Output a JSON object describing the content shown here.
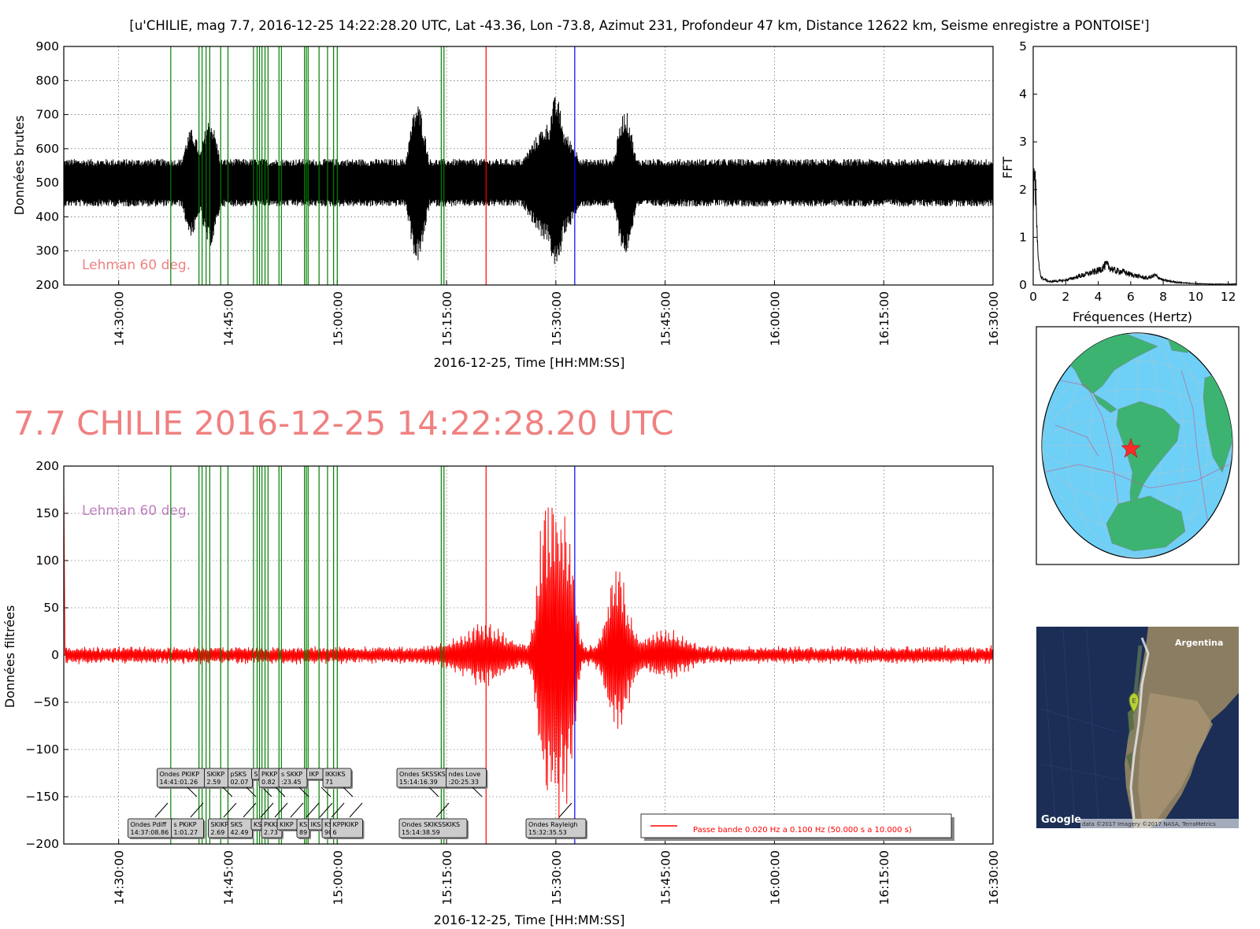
{
  "header": {
    "title": "[u'CHILIE, mag 7.7, 2016-12-25 14:22:28.20 UTC, Lat -43.36, Lon -73.8, Azimut 231, Profondeur 47 km, Distance 12622 km, Seisme enregistre a PONTOISE']",
    "headline": "7.7 CHILIE 2016-12-25 14:22:28.20 UTC"
  },
  "chart_data": [
    {
      "type": "line",
      "id": "raw",
      "ylabel": "Données brutes",
      "xlabel": "2016-12-25, Time [HH:MM:SS]",
      "xlim": [
        "14:22:28",
        "16:30:00"
      ],
      "ylim": [
        200,
        900
      ],
      "yticks": [
        "200",
        "300",
        "400",
        "500",
        "600",
        "700",
        "800",
        "900"
      ],
      "xticks": [
        "14:30:00",
        "14:45:00",
        "15:00:00",
        "15:15:00",
        "15:30:00",
        "15:45:00",
        "16:00:00",
        "16:15:00",
        "16:30:00"
      ],
      "annotation_text": "Lehman 60 deg.",
      "series_color": "#000000",
      "baseline": 500,
      "features": [
        {
          "time": "14:40:00",
          "min": 315,
          "max": 660
        },
        {
          "time": "14:42:30",
          "min": 280,
          "max": 715
        },
        {
          "time": "15:11:00",
          "min": 225,
          "max": 765
        },
        {
          "time": "15:30:00",
          "min": 255,
          "max": 800
        },
        {
          "time": "15:39:30",
          "min": 250,
          "max": 650
        }
      ]
    },
    {
      "type": "line",
      "id": "fft",
      "ylabel": "FFT",
      "xlabel": "Fréquences (Hertz)",
      "xlim": [
        0,
        12.5
      ],
      "ylim": [
        0,
        5
      ],
      "xticks": [
        "0",
        "2",
        "4",
        "6",
        "8",
        "10",
        "12"
      ],
      "yticks": [
        "0",
        "1",
        "2",
        "3",
        "4",
        "5"
      ],
      "series_color": "#000000",
      "points": [
        [
          0.02,
          1.4
        ],
        [
          0.05,
          2.8
        ],
        [
          0.1,
          2.4
        ],
        [
          0.2,
          1.4
        ],
        [
          0.3,
          0.5
        ],
        [
          0.5,
          0.15
        ],
        [
          1.0,
          0.07
        ],
        [
          2.0,
          0.1
        ],
        [
          3.0,
          0.2
        ],
        [
          4.0,
          0.3
        ],
        [
          4.5,
          0.42
        ],
        [
          5.0,
          0.3
        ],
        [
          5.5,
          0.28
        ],
        [
          6.0,
          0.22
        ],
        [
          7.0,
          0.14
        ],
        [
          7.5,
          0.2
        ],
        [
          8.0,
          0.1
        ],
        [
          9.0,
          0.05
        ],
        [
          10.0,
          0.03
        ],
        [
          11.0,
          0.02
        ],
        [
          12.5,
          0.02
        ]
      ]
    },
    {
      "type": "line",
      "id": "filtered",
      "ylabel": "Données filtrées",
      "xlabel": "2016-12-25, Time [HH:MM:SS]",
      "xlim": [
        "14:22:28",
        "16:30:00"
      ],
      "ylim": [
        -200,
        200
      ],
      "yticks": [
        "−200",
        "−150",
        "−100",
        "−50",
        "0",
        "50",
        "100",
        "150",
        "200"
      ],
      "xticks": [
        "14:30:00",
        "14:45:00",
        "15:00:00",
        "15:15:00",
        "15:30:00",
        "15:45:00",
        "16:00:00",
        "16:15:00",
        "16:30:00"
      ],
      "annotation_text": "Lehman 60 deg.",
      "series_color": "#ff0000",
      "legend": "Passe bande 0.020 Hz a 0.100 Hz (50.000 s a 10.000 s)",
      "features": [
        {
          "time": "15:30:00",
          "amplitude": 175
        },
        {
          "time": "15:38:30",
          "amplitude": 92
        }
      ]
    }
  ],
  "phase_lines": {
    "green_times": [
      "14:37:08.86",
      "14:41:01.26",
      "14:41:27",
      "14:42:00",
      "14:42:30",
      "14:44:00",
      "14:45:00",
      "14:48:30",
      "14:49:00",
      "14:49:20",
      "14:49:40",
      "14:50:05",
      "14:50:30",
      "14:52:00",
      "14:52:20",
      "14:55:30",
      "14:55:45",
      "14:56:00",
      "14:57:30",
      "14:58:40",
      "14:59:30",
      "15:00:00",
      "15:14:16.39",
      "15:14:38.59"
    ],
    "red_time": "15:20:25.33",
    "blue_time": "15:32:35.53"
  },
  "phase_labels": {
    "upper_row": [
      {
        "label": "Ondes PKIKP\n14:41:01.26"
      },
      {
        "label": "SKIKP\n2.59"
      },
      {
        "label": "pSKS\n02.07"
      },
      {
        "label": "S"
      },
      {
        "label": "PKKP\n0.82"
      },
      {
        "label": "s SKKP\n:23.45"
      },
      {
        "label": "IKP"
      },
      {
        "label": "IKKIKS\n71"
      },
      {
        "label": "Ondes SKSSKS\n15:14:16.39"
      },
      {
        "label": "ndes Love\n:20:25.33"
      }
    ],
    "lower_row": [
      {
        "label": "Ondes Pdiff\n14:37:08.86"
      },
      {
        "label": "s PKiKP\n1:01.27"
      },
      {
        "label": "SKIKP\n2.69"
      },
      {
        "label": "SKS\n42.49"
      },
      {
        "label": "KS"
      },
      {
        "label": "PKKP\n2.73"
      },
      {
        "label": "KIKP"
      },
      {
        "label": "KS\n89"
      },
      {
        "label": "IKS"
      },
      {
        "label": "KS\n90"
      },
      {
        "label": "KPPKIKP\n6"
      },
      {
        "label": "Ondes SKIKSSKIKS\n15:14:38.59"
      },
      {
        "label": "Ondes Rayleigh\n15:32:35.53"
      }
    ]
  },
  "maps": {
    "globe": {
      "ocean": "#6ed0f7",
      "land": "#3cb371",
      "marker": "red-star"
    },
    "satellite": {
      "label_country": "Argentina",
      "marker_letter": "E",
      "logo": "Google",
      "attribution": "data ©2017  Imagery ©2017 NASA, TerraMetrics"
    }
  }
}
